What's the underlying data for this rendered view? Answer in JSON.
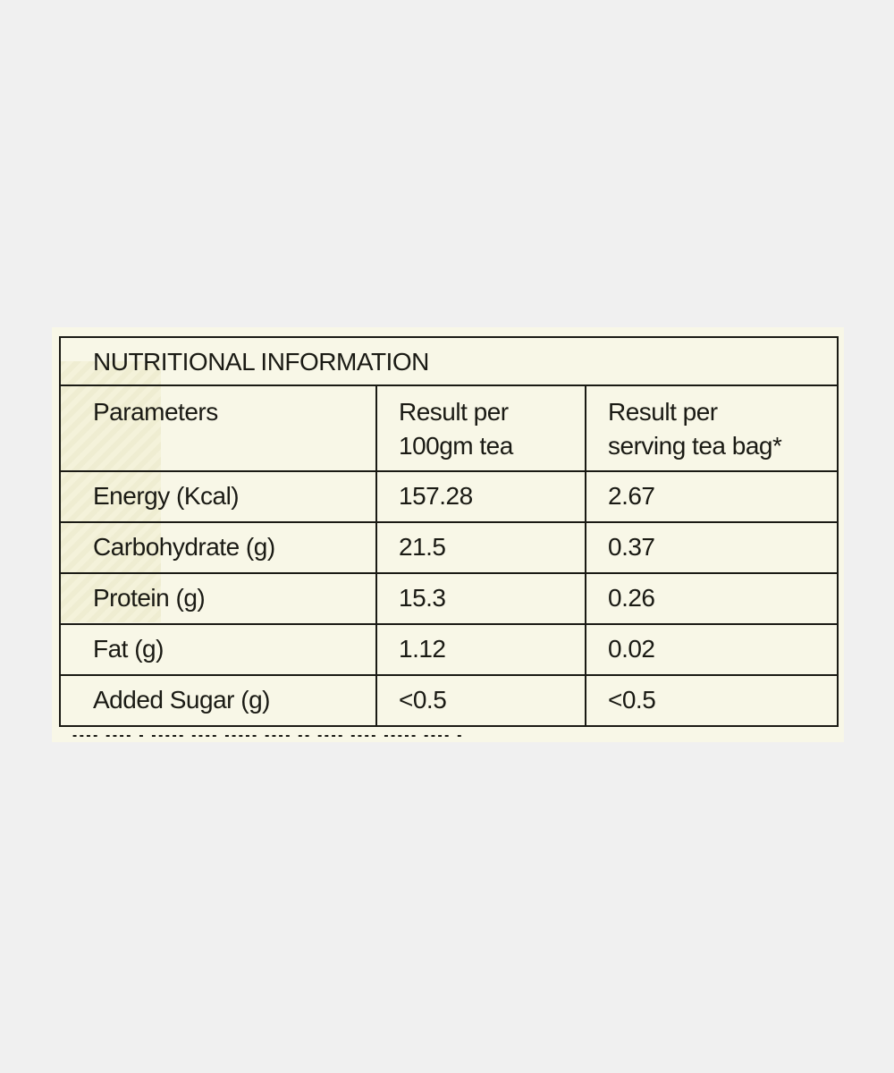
{
  "table": {
    "title": "NUTRITIONAL INFORMATION",
    "headers": [
      "Parameters",
      "Result per\n100gm tea",
      "Result per\nserving tea bag*"
    ],
    "rows": [
      [
        "Energy (Kcal)",
        "157.28",
        "2.67"
      ],
      [
        "Carbohydrate (g)",
        "21.5",
        "0.37"
      ],
      [
        "Protein (g)",
        "15.3",
        "0.26"
      ],
      [
        "Fat (g)",
        "1.12",
        "0.02"
      ],
      [
        "Added Sugar (g)",
        "<0.5",
        "<0.5"
      ]
    ]
  }
}
